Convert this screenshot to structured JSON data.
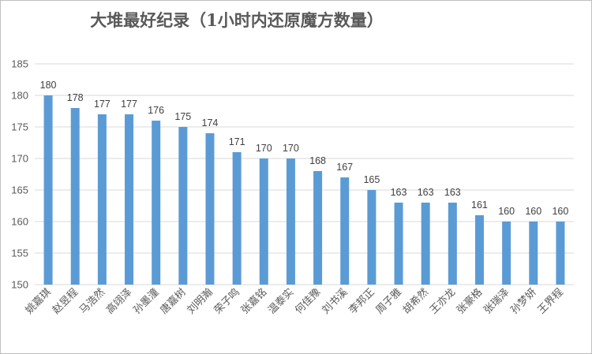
{
  "chart_data": {
    "type": "bar",
    "title": "大堆最好纪录（1小时内还原魔方数量）",
    "categories": [
      "姚嘉琪",
      "赵昱程",
      "马浩然",
      "高翊泽",
      "孙墨潼",
      "唐嘉树",
      "刘明瀚",
      "荣子鸣",
      "张嘉铭",
      "温泰实",
      "何佳豫",
      "刘书溪",
      "李邦正",
      "周子雅",
      "胡希然",
      "王亦龙",
      "张豪格",
      "张瑞泽",
      "孙梦妍",
      "王界程"
    ],
    "values": [
      180,
      178,
      177,
      177,
      176,
      175,
      174,
      171,
      170,
      170,
      168,
      167,
      165,
      163,
      163,
      163,
      161,
      160,
      160,
      160
    ],
    "ylim": [
      150,
      185
    ],
    "yticks": [
      "150",
      "155",
      "160",
      "165",
      "170",
      "175",
      "180",
      "185"
    ],
    "grid": true,
    "bar_color": "#5b9bd5",
    "grid_color": "#d9d9d9"
  }
}
